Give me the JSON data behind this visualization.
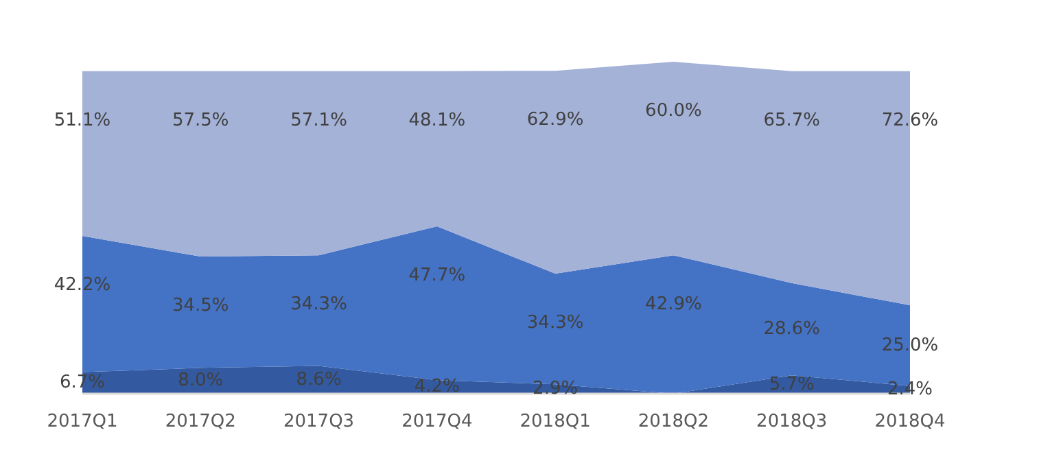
{
  "chart_data": {
    "type": "area",
    "stacked": true,
    "categories": [
      "2017Q1",
      "2017Q2",
      "2017Q3",
      "2017Q4",
      "2018Q1",
      "2018Q2",
      "2018Q3",
      "2018Q4"
    ],
    "series": [
      {
        "color": "#335aa0",
        "values": [
          6.7,
          8.0,
          8.6,
          4.2,
          2.9,
          null,
          5.7,
          2.4
        ],
        "value_labels": [
          "6.7%",
          "8.0%",
          "8.6%",
          "4.2%",
          "2.9%",
          null,
          "5.7%",
          "2.4%"
        ]
      },
      {
        "color": "#4472c4",
        "values": [
          42.2,
          34.5,
          34.3,
          47.7,
          34.3,
          42.9,
          28.6,
          25.0
        ],
        "value_labels": [
          "42.2%",
          "34.5%",
          "34.3%",
          "47.7%",
          "34.3%",
          "42.9%",
          "28.6%",
          "25.0%"
        ]
      },
      {
        "color": "#a5b2d8",
        "values": [
          51.1,
          57.5,
          57.1,
          48.1,
          62.9,
          60.0,
          65.7,
          72.6
        ],
        "value_labels": [
          "51.1%",
          "57.5%",
          "57.1%",
          "48.1%",
          "62.9%",
          "60.0%",
          "65.7%",
          "72.6%"
        ]
      }
    ]
  }
}
